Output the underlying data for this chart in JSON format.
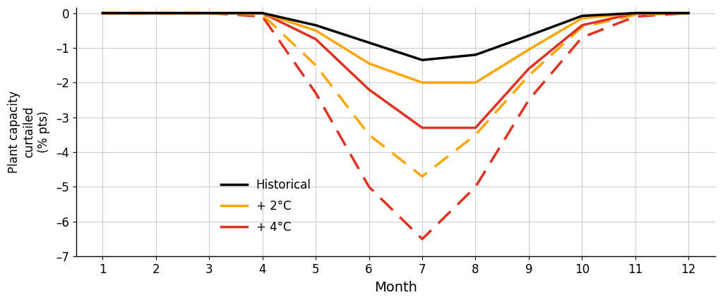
{
  "months": [
    1,
    2,
    3,
    4,
    5,
    6,
    7,
    8,
    9,
    10,
    11,
    12
  ],
  "historical_solid": [
    0.0,
    0.0,
    0.0,
    0.0,
    -0.35,
    -0.85,
    -1.35,
    -1.2,
    -0.65,
    -0.08,
    0.0,
    0.0
  ],
  "plus2_solid": [
    0.0,
    0.0,
    0.0,
    0.0,
    -0.5,
    -1.45,
    -2.0,
    -2.0,
    -1.05,
    -0.15,
    0.0,
    0.0
  ],
  "plus4_solid": [
    0.0,
    0.0,
    0.0,
    0.0,
    -0.75,
    -2.2,
    -3.3,
    -3.3,
    -1.6,
    -0.35,
    0.0,
    0.0
  ],
  "plus2_dashed": [
    0.0,
    0.0,
    0.0,
    -0.05,
    -1.5,
    -3.5,
    -4.7,
    -3.5,
    -1.8,
    -0.4,
    -0.05,
    0.0
  ],
  "plus4_dashed": [
    0.0,
    0.0,
    0.0,
    -0.1,
    -2.3,
    -5.0,
    -6.5,
    -5.0,
    -2.5,
    -0.7,
    -0.1,
    0.0
  ],
  "color_historical": "#000000",
  "color_plus2": "#FFA500",
  "color_plus4": "#E03020",
  "linewidth_solid": 2.5,
  "linewidth_dashed": 2.5,
  "ylim": [
    -7,
    0.15
  ],
  "yticks": [
    0,
    -1,
    -2,
    -3,
    -4,
    -5,
    -6,
    -7
  ],
  "ytick_labels": [
    "0",
    "–1",
    "–2",
    "–3",
    "–4",
    "–5",
    "–6",
    "–7"
  ],
  "xlabel": "Month",
  "ylabel": "Plant capacity\ncurtailed\n(% pts)",
  "legend_labels": [
    "Historical",
    "+ 2°C",
    "+ 4°C"
  ],
  "background_color": "#ffffff",
  "grid_color": "#cccccc",
  "figsize": [
    10.24,
    4.29
  ],
  "dpi": 100
}
